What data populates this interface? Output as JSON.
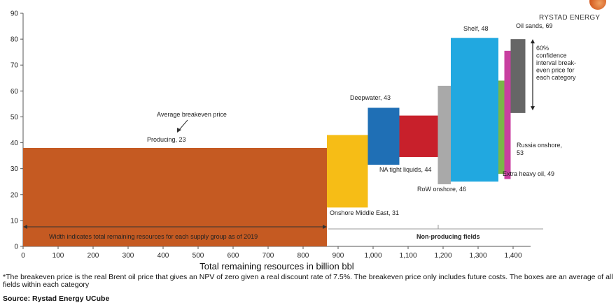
{
  "brand": {
    "name": "RYSTAD ENERGY"
  },
  "chart_data": {
    "type": "bar",
    "variant": "variable-width box chart",
    "xlabel": "Total remaining resources in billion bbl",
    "ylabel": "",
    "xlim": [
      0,
      1450
    ],
    "ylim": [
      0,
      90
    ],
    "x_ticks": [
      0,
      100,
      200,
      300,
      400,
      500,
      600,
      700,
      800,
      900,
      1000,
      1100,
      1200,
      1300,
      1400
    ],
    "x_tick_labels": [
      "0",
      "100",
      "200",
      "300",
      "400",
      "500",
      "600",
      "700",
      "800",
      "900",
      "1,000",
      "1,100",
      "1,200",
      "1,300",
      "1,400"
    ],
    "y_ticks": [
      0,
      10,
      20,
      30,
      40,
      50,
      60,
      70,
      80,
      90
    ],
    "grid": false,
    "boxes": [
      {
        "label": "Producing, 23",
        "x0": 0,
        "x1": 868,
        "low": 0,
        "high": 38,
        "color": "#c55a22"
      },
      {
        "label": "Onshore Middle East, 31",
        "x0": 868,
        "x1": 985,
        "low": 15,
        "high": 43,
        "color": "#f6bd16"
      },
      {
        "label": "Deepwater, 43",
        "x0": 985,
        "x1": 1075,
        "low": 31.5,
        "high": 53.5,
        "color": "#1f6fb5"
      },
      {
        "label": "NA tight liquids, 44",
        "x0": 1075,
        "x1": 1185,
        "low": 34.5,
        "high": 50.5,
        "color": "#c8202b"
      },
      {
        "label": "RoW onshore, 46",
        "x0": 1185,
        "x1": 1222,
        "low": 24,
        "high": 62,
        "color": "#a9a9a9"
      },
      {
        "label": "Shelf, 48",
        "x0": 1222,
        "x1": 1358,
        "low": 25,
        "high": 80.5,
        "color": "#21a8e0"
      },
      {
        "label": "Extra heavy oil, 49",
        "x0": 1358,
        "x1": 1375,
        "low": 28,
        "high": 64,
        "color": "#7ab648"
      },
      {
        "label": "Russia onshore, 53",
        "x0": 1375,
        "x1": 1393,
        "low": 26,
        "high": 75.5,
        "color": "#c83fa0"
      },
      {
        "label": "Oil sands, 69",
        "x0": 1393,
        "x1": 1435,
        "low": 51.5,
        "high": 80,
        "color": "#666666"
      }
    ],
    "annotations": {
      "average_breakeven": "Average breakeven price",
      "width_note": "Width indicates total remaining resources for each supply group as of 2019",
      "non_producing": "Non-producing fields",
      "confidence_lines": [
        "60%",
        "confidence",
        "interval break-",
        "even price for",
        "each category"
      ]
    }
  },
  "footnote": "*The breakeven price is the real Brent oil price that gives an NPV of zero given a real discount rate of 7.5%. The breakeven price only includes future costs. The boxes are an average of all fields within each category",
  "source": "Source: Rystad Energy UCube"
}
